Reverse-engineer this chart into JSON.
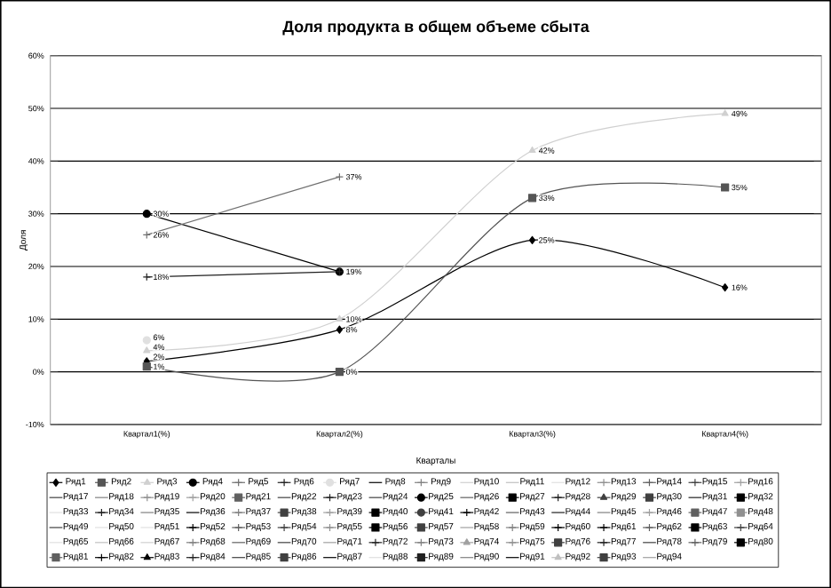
{
  "chart_data": {
    "type": "line",
    "title": "Доля продукта в общем объеме сбыта",
    "xlabel": "Кварталы",
    "ylabel": "Доля",
    "categories": [
      "Квартал1(%)",
      "Квартал2(%)",
      "Квартал3(%)",
      "Квартал4(%)"
    ],
    "ylim": [
      -10,
      60
    ],
    "yticks": [
      {
        "value": -10,
        "label": "-10%"
      },
      {
        "value": 0,
        "label": "0%"
      },
      {
        "value": 10,
        "label": "10%"
      },
      {
        "value": 20,
        "label": "20%"
      },
      {
        "value": 30,
        "label": "30%"
      },
      {
        "value": 40,
        "label": "40%"
      },
      {
        "value": 50,
        "label": "50%"
      },
      {
        "value": 60,
        "label": "60%"
      }
    ],
    "grid": "y",
    "legend": "bottom",
    "series": [
      {
        "name": "Ряд1",
        "color": "#000000",
        "marker": "diamond",
        "values": [
          2,
          8,
          25,
          16
        ],
        "value_labels": [
          "2%",
          "8%",
          "25%",
          "16%"
        ]
      },
      {
        "name": "Ряд2",
        "color": "#555555",
        "marker": "square",
        "values": [
          1,
          0,
          33,
          35
        ],
        "value_labels": [
          "1%",
          "0%",
          "33%",
          "35%"
        ]
      },
      {
        "name": "Ряд3",
        "color": "#d0d0d0",
        "marker": "triangle",
        "values": [
          4,
          10,
          42,
          49
        ],
        "value_labels": [
          "4%",
          "10%",
          "42%",
          "49%"
        ]
      },
      {
        "name": "Ряд4",
        "color": "#000000",
        "marker": "circle",
        "values": [
          30,
          19,
          null,
          null
        ],
        "value_labels": [
          "30%",
          "19%",
          null,
          null
        ]
      },
      {
        "name": "Ряд5",
        "color": "#707070",
        "marker": "cross",
        "values": [
          26,
          37,
          null,
          null
        ],
        "value_labels": [
          "26%",
          "37%",
          null,
          null
        ]
      },
      {
        "name": "Ряд6",
        "color": "#202020",
        "marker": "cross",
        "values": [
          18,
          19,
          null,
          null
        ],
        "value_labels": [
          "18%",
          null,
          null,
          null
        ]
      },
      {
        "name": "Ряд7",
        "color": "#e0e0e0",
        "marker": "circle",
        "values": [
          6,
          null,
          null,
          null
        ],
        "value_labels": [
          "6%",
          null,
          null,
          null
        ]
      },
      {
        "name": "Ряд8",
        "color": "#000000",
        "marker": "none",
        "values": [
          null,
          null,
          null,
          null
        ]
      },
      {
        "name": "Ряд9",
        "color": "#808080",
        "marker": "cross",
        "values": [
          null,
          null,
          null,
          null
        ]
      },
      {
        "name": "Ряд10",
        "color": "#d0d0d0",
        "marker": "none",
        "values": [
          null,
          null,
          null,
          null
        ]
      },
      {
        "name": "Ряд11",
        "color": "#c0c0c0",
        "marker": "none",
        "values": [
          null,
          null,
          null,
          null
        ]
      },
      {
        "name": "Ряд12",
        "color": "#e0e0e0",
        "marker": "none",
        "values": [
          null,
          null,
          null,
          null
        ]
      },
      {
        "name": "Ряд13",
        "color": "#909090",
        "marker": "cross",
        "values": [
          null,
          null,
          null,
          null
        ]
      },
      {
        "name": "Ряд14",
        "color": "#606060",
        "marker": "cross",
        "values": [
          null,
          null,
          null,
          null
        ]
      },
      {
        "name": "Ряд15",
        "color": "#404040",
        "marker": "cross",
        "values": [
          null,
          null,
          null,
          null
        ]
      },
      {
        "name": "Ряд16",
        "color": "#a0a0a0",
        "marker": "cross",
        "values": [
          null,
          null,
          null,
          null
        ]
      },
      {
        "name": "Ряд17",
        "color": "#404040",
        "marker": "none",
        "values": [
          null,
          null,
          null,
          null
        ]
      },
      {
        "name": "Ряд18",
        "color": "#808080",
        "marker": "none",
        "values": [
          null,
          null,
          null,
          null
        ]
      },
      {
        "name": "Ряд19",
        "color": "#909090",
        "marker": "cross",
        "values": [
          null,
          null,
          null,
          null
        ]
      },
      {
        "name": "Ряд20",
        "color": "#a0a0a0",
        "marker": "cross",
        "values": [
          null,
          null,
          null,
          null
        ]
      },
      {
        "name": "Ряд21",
        "color": "#606060",
        "marker": "square",
        "values": [
          null,
          null,
          null,
          null
        ]
      },
      {
        "name": "Ряд22",
        "color": "#404040",
        "marker": "none",
        "values": [
          null,
          null,
          null,
          null
        ]
      },
      {
        "name": "Ряд23",
        "color": "#202020",
        "marker": "cross",
        "values": [
          null,
          null,
          null,
          null
        ]
      },
      {
        "name": "Ряд24",
        "color": "#404040",
        "marker": "none",
        "values": [
          null,
          null,
          null,
          null
        ]
      },
      {
        "name": "Ряд25",
        "color": "#000000",
        "marker": "circle",
        "values": [
          null,
          null,
          null,
          null
        ]
      },
      {
        "name": "Ряд26",
        "color": "#606060",
        "marker": "none",
        "values": [
          null,
          null,
          null,
          null
        ]
      },
      {
        "name": "Ряд27",
        "color": "#000000",
        "marker": "square",
        "values": [
          null,
          null,
          null,
          null
        ]
      },
      {
        "name": "Ряд28",
        "color": "#202020",
        "marker": "cross",
        "values": [
          null,
          null,
          null,
          null
        ]
      },
      {
        "name": "Ряд29",
        "color": "#404040",
        "marker": "triangle",
        "values": [
          null,
          null,
          null,
          null
        ]
      },
      {
        "name": "Ряд30",
        "color": "#404040",
        "marker": "square",
        "values": [
          null,
          null,
          null,
          null
        ]
      },
      {
        "name": "Ряд31",
        "color": "#202020",
        "marker": "none",
        "values": [
          null,
          null,
          null,
          null
        ]
      },
      {
        "name": "Ряд32",
        "color": "#000000",
        "marker": "square",
        "values": [
          null,
          null,
          null,
          null
        ]
      },
      {
        "name": "Ряд33",
        "color": "#e0e0e0",
        "marker": "none",
        "values": [
          null,
          null,
          null,
          null
        ]
      },
      {
        "name": "Ряд34",
        "color": "#202020",
        "marker": "cross",
        "values": [
          null,
          null,
          null,
          null
        ]
      },
      {
        "name": "Ряд35",
        "color": "#808080",
        "marker": "none",
        "values": [
          null,
          null,
          null,
          null
        ]
      },
      {
        "name": "Ряд36",
        "color": "#000000",
        "marker": "none",
        "values": [
          null,
          null,
          null,
          null
        ]
      },
      {
        "name": "Ряд37",
        "color": "#808080",
        "marker": "cross",
        "values": [
          null,
          null,
          null,
          null
        ]
      },
      {
        "name": "Ряд38",
        "color": "#404040",
        "marker": "square",
        "values": [
          null,
          null,
          null,
          null
        ]
      },
      {
        "name": "Ряд39",
        "color": "#a0a0a0",
        "marker": "cross",
        "values": [
          null,
          null,
          null,
          null
        ]
      },
      {
        "name": "Ряд40",
        "color": "#000000",
        "marker": "square",
        "values": [
          null,
          null,
          null,
          null
        ]
      },
      {
        "name": "Ряд41",
        "color": "#404040",
        "marker": "circle",
        "values": [
          null,
          null,
          null,
          null
        ]
      },
      {
        "name": "Ряд42",
        "color": "#000000",
        "marker": "cross",
        "values": [
          null,
          null,
          null,
          null
        ]
      },
      {
        "name": "Ряд43",
        "color": "#606060",
        "marker": "none",
        "values": [
          null,
          null,
          null,
          null
        ]
      },
      {
        "name": "Ряд44",
        "color": "#202020",
        "marker": "none",
        "values": [
          null,
          null,
          null,
          null
        ]
      },
      {
        "name": "Ряд45",
        "color": "#808080",
        "marker": "none",
        "values": [
          null,
          null,
          null,
          null
        ]
      },
      {
        "name": "Ряд46",
        "color": "#a0a0a0",
        "marker": "cross",
        "values": [
          null,
          null,
          null,
          null
        ]
      },
      {
        "name": "Ряд47",
        "color": "#606060",
        "marker": "square",
        "values": [
          null,
          null,
          null,
          null
        ]
      },
      {
        "name": "Ряд48",
        "color": "#909090",
        "marker": "square",
        "values": [
          null,
          null,
          null,
          null
        ]
      },
      {
        "name": "Ряд49",
        "color": "#404040",
        "marker": "none",
        "values": [
          null,
          null,
          null,
          null
        ]
      },
      {
        "name": "Ряд50",
        "color": "#e0e0e0",
        "marker": "none",
        "values": [
          null,
          null,
          null,
          null
        ]
      },
      {
        "name": "Ряд51",
        "color": "#e0e0e0",
        "marker": "none",
        "values": [
          null,
          null,
          null,
          null
        ]
      },
      {
        "name": "Ряд52",
        "color": "#000000",
        "marker": "cross",
        "values": [
          null,
          null,
          null,
          null
        ]
      },
      {
        "name": "Ряд53",
        "color": "#606060",
        "marker": "cross",
        "values": [
          null,
          null,
          null,
          null
        ]
      },
      {
        "name": "Ряд54",
        "color": "#404040",
        "marker": "cross",
        "values": [
          null,
          null,
          null,
          null
        ]
      },
      {
        "name": "Ряд55",
        "color": "#909090",
        "marker": "cross",
        "values": [
          null,
          null,
          null,
          null
        ]
      },
      {
        "name": "Ряд56",
        "color": "#000000",
        "marker": "square",
        "values": [
          null,
          null,
          null,
          null
        ]
      },
      {
        "name": "Ряд57",
        "color": "#404040",
        "marker": "square",
        "values": [
          null,
          null,
          null,
          null
        ]
      },
      {
        "name": "Ряд58",
        "color": "#a0a0a0",
        "marker": "none",
        "values": [
          null,
          null,
          null,
          null
        ]
      },
      {
        "name": "Ряд59",
        "color": "#808080",
        "marker": "cross",
        "values": [
          null,
          null,
          null,
          null
        ]
      },
      {
        "name": "Ряд60",
        "color": "#000000",
        "marker": "cross",
        "values": [
          null,
          null,
          null,
          null
        ]
      },
      {
        "name": "Ряд61",
        "color": "#000000",
        "marker": "cross",
        "values": [
          null,
          null,
          null,
          null
        ]
      },
      {
        "name": "Ряд62",
        "color": "#606060",
        "marker": "cross",
        "values": [
          null,
          null,
          null,
          null
        ]
      },
      {
        "name": "Ряд63",
        "color": "#000000",
        "marker": "square",
        "values": [
          null,
          null,
          null,
          null
        ]
      },
      {
        "name": "Ряд64",
        "color": "#404040",
        "marker": "cross",
        "values": [
          null,
          null,
          null,
          null
        ]
      },
      {
        "name": "Ряд65",
        "color": "#e0e0e0",
        "marker": "none",
        "values": [
          null,
          null,
          null,
          null
        ]
      },
      {
        "name": "Ряд66",
        "color": "#c0c0c0",
        "marker": "none",
        "values": [
          null,
          null,
          null,
          null
        ]
      },
      {
        "name": "Ряд67",
        "color": "#d0d0d0",
        "marker": "none",
        "values": [
          null,
          null,
          null,
          null
        ]
      },
      {
        "name": "Ряд68",
        "color": "#808080",
        "marker": "cross",
        "values": [
          null,
          null,
          null,
          null
        ]
      },
      {
        "name": "Ряд69",
        "color": "#606060",
        "marker": "none",
        "values": [
          null,
          null,
          null,
          null
        ]
      },
      {
        "name": "Ряд70",
        "color": "#404040",
        "marker": "none",
        "values": [
          null,
          null,
          null,
          null
        ]
      },
      {
        "name": "Ряд71",
        "color": "#a0a0a0",
        "marker": "none",
        "values": [
          null,
          null,
          null,
          null
        ]
      },
      {
        "name": "Ряд72",
        "color": "#202020",
        "marker": "cross",
        "values": [
          null,
          null,
          null,
          null
        ]
      },
      {
        "name": "Ряд73",
        "color": "#808080",
        "marker": "cross",
        "values": [
          null,
          null,
          null,
          null
        ]
      },
      {
        "name": "Ряд74",
        "color": "#a0a0a0",
        "marker": "triangle",
        "values": [
          null,
          null,
          null,
          null
        ]
      },
      {
        "name": "Ряд75",
        "color": "#909090",
        "marker": "cross",
        "values": [
          null,
          null,
          null,
          null
        ]
      },
      {
        "name": "Ряд76",
        "color": "#404040",
        "marker": "square",
        "values": [
          null,
          null,
          null,
          null
        ]
      },
      {
        "name": "Ряд77",
        "color": "#202020",
        "marker": "cross",
        "values": [
          null,
          null,
          null,
          null
        ]
      },
      {
        "name": "Ряд78",
        "color": "#404040",
        "marker": "none",
        "values": [
          null,
          null,
          null,
          null
        ]
      },
      {
        "name": "Ряд79",
        "color": "#606060",
        "marker": "cross",
        "values": [
          null,
          null,
          null,
          null
        ]
      },
      {
        "name": "Ряд80",
        "color": "#000000",
        "marker": "square",
        "values": [
          null,
          null,
          null,
          null
        ]
      },
      {
        "name": "Ряд81",
        "color": "#606060",
        "marker": "square",
        "values": [
          null,
          null,
          null,
          null
        ]
      },
      {
        "name": "Ряд82",
        "color": "#000000",
        "marker": "cross",
        "values": [
          null,
          null,
          null,
          null
        ]
      },
      {
        "name": "Ряд83",
        "color": "#000000",
        "marker": "triangle",
        "values": [
          null,
          null,
          null,
          null
        ]
      },
      {
        "name": "Ряд84",
        "color": "#202020",
        "marker": "cross",
        "values": [
          null,
          null,
          null,
          null
        ]
      },
      {
        "name": "Ряд85",
        "color": "#404040",
        "marker": "none",
        "values": [
          null,
          null,
          null,
          null
        ]
      },
      {
        "name": "Ряд86",
        "color": "#404040",
        "marker": "square",
        "values": [
          null,
          null,
          null,
          null
        ]
      },
      {
        "name": "Ряд87",
        "color": "#000000",
        "marker": "none",
        "values": [
          null,
          null,
          null,
          null
        ]
      },
      {
        "name": "Ряд88",
        "color": "#e0e0e0",
        "marker": "none",
        "values": [
          null,
          null,
          null,
          null
        ]
      },
      {
        "name": "Ряд89",
        "color": "#202020",
        "marker": "square",
        "values": [
          null,
          null,
          null,
          null
        ]
      },
      {
        "name": "Ряд90",
        "color": "#808080",
        "marker": "none",
        "values": [
          null,
          null,
          null,
          null
        ]
      },
      {
        "name": "Ряд91",
        "color": "#000000",
        "marker": "none",
        "values": [
          null,
          null,
          null,
          null
        ]
      },
      {
        "name": "Ряд92",
        "color": "#c0c0c0",
        "marker": "triangle",
        "values": [
          null,
          null,
          null,
          null
        ]
      },
      {
        "name": "Ряд93",
        "color": "#404040",
        "marker": "square",
        "values": [
          null,
          null,
          null,
          null
        ]
      },
      {
        "name": "Ряд94",
        "color": "#a0a0a0",
        "marker": "none",
        "values": [
          null,
          null,
          null,
          null
        ]
      }
    ]
  }
}
